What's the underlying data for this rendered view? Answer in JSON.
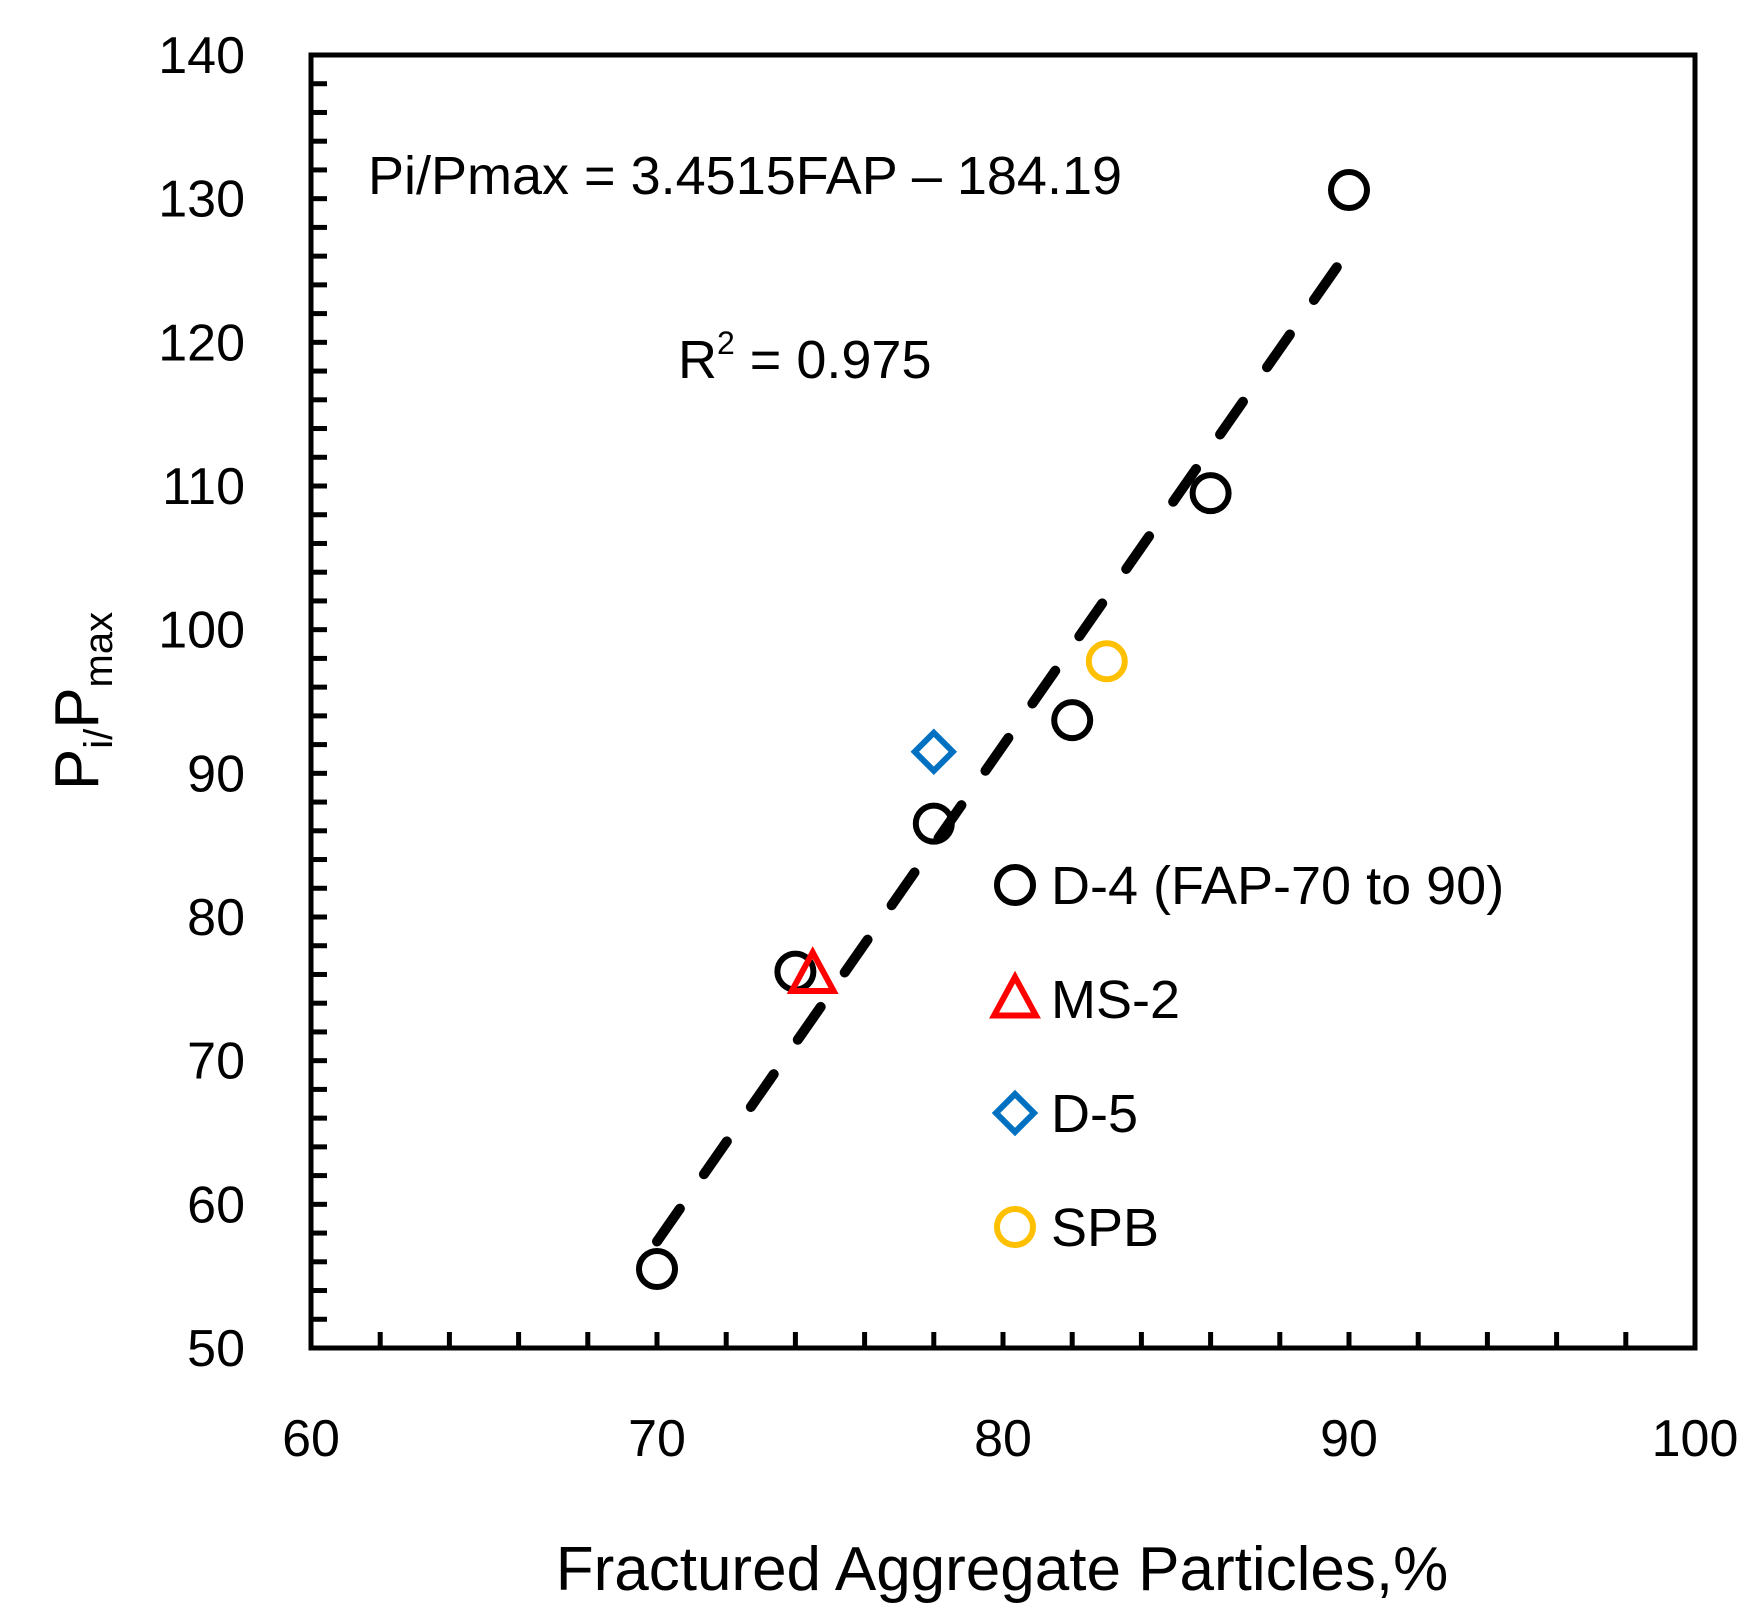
{
  "chart_data": {
    "type": "scatter",
    "title": "",
    "xlabel": "Fractured Aggregate Particles,%",
    "ylabel": {
      "main": "P",
      "sub1": "i/",
      "main2": "P",
      "sub2": "max"
    },
    "xlim": [
      60,
      100
    ],
    "ylim": [
      50,
      140
    ],
    "x_ticks": [
      60,
      70,
      80,
      90,
      100
    ],
    "y_ticks": [
      50,
      60,
      70,
      80,
      90,
      100,
      110,
      120,
      130,
      140
    ],
    "x_minor_step": 2,
    "y_minor_step": 2,
    "grid": false,
    "legend_position": "right-middle",
    "series": [
      {
        "name": "D-4 (FAP-70 to 90)",
        "marker": "circle",
        "color": "#000000",
        "x": [
          70,
          74,
          78,
          82,
          86,
          90
        ],
        "y": [
          55.5,
          76.2,
          86.5,
          93.7,
          109.5,
          130.6
        ]
      },
      {
        "name": "MS-2",
        "marker": "triangle",
        "color": "#FF0000",
        "x": [
          74.5
        ],
        "y": [
          76.0
        ]
      },
      {
        "name": "D-5",
        "marker": "diamond",
        "color": "#0070C0",
        "x": [
          78
        ],
        "y": [
          91.5
        ]
      },
      {
        "name": "SPB",
        "marker": "circle",
        "color": "#FFC000",
        "x": [
          83
        ],
        "y": [
          97.8
        ]
      }
    ],
    "trendline": {
      "style": "dashed",
      "color": "#000000",
      "slope": 3.4515,
      "intercept": -184.19,
      "x_range": [
        70,
        90
      ]
    },
    "annotations": {
      "equation": "Pi/Pmax = 3.4515FAP – 184.19",
      "r2_prefix": "R",
      "r2_sup": "2",
      "r2_value": " = 0.975"
    }
  }
}
